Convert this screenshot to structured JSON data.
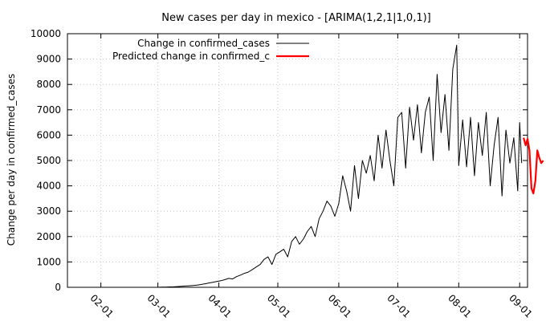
{
  "chart_data": {
    "type": "line",
    "title": "New cases per day in mexico -  [ARIMA(1,2,1|1,0,1)]",
    "xlabel": "",
    "ylabel": "Change per day in confirmed_cases",
    "xlim": [
      "2020-01-15",
      "2020-09-05"
    ],
    "ylim": [
      0,
      10000
    ],
    "x_ticks": [
      "02-01",
      "03-01",
      "04-01",
      "05-01",
      "06-01",
      "07-01",
      "08-01",
      "09-01"
    ],
    "x_tick_dates": [
      "2020-02-01",
      "2020-03-01",
      "2020-04-01",
      "2020-05-01",
      "2020-06-01",
      "2020-07-01",
      "2020-08-01",
      "2020-09-01"
    ],
    "y_ticks": [
      0,
      1000,
      2000,
      3000,
      4000,
      5000,
      6000,
      7000,
      8000,
      9000,
      10000
    ],
    "grid": true,
    "legend_position": "top-left",
    "series": [
      {
        "name": "Change in confirmed_cases",
        "color": "#000000",
        "x": [
          "2020-03-01",
          "2020-03-03",
          "2020-03-05",
          "2020-03-07",
          "2020-03-09",
          "2020-03-11",
          "2020-03-13",
          "2020-03-15",
          "2020-03-17",
          "2020-03-19",
          "2020-03-21",
          "2020-03-23",
          "2020-03-25",
          "2020-03-27",
          "2020-03-29",
          "2020-03-31",
          "2020-04-02",
          "2020-04-04",
          "2020-04-06",
          "2020-04-08",
          "2020-04-10",
          "2020-04-12",
          "2020-04-14",
          "2020-04-16",
          "2020-04-18",
          "2020-04-20",
          "2020-04-22",
          "2020-04-24",
          "2020-04-26",
          "2020-04-28",
          "2020-04-30",
          "2020-05-02",
          "2020-05-04",
          "2020-05-06",
          "2020-05-08",
          "2020-05-10",
          "2020-05-12",
          "2020-05-14",
          "2020-05-16",
          "2020-05-18",
          "2020-05-20",
          "2020-05-22",
          "2020-05-24",
          "2020-05-26",
          "2020-05-28",
          "2020-05-30",
          "2020-06-01",
          "2020-06-03",
          "2020-06-05",
          "2020-06-07",
          "2020-06-09",
          "2020-06-11",
          "2020-06-13",
          "2020-06-15",
          "2020-06-17",
          "2020-06-19",
          "2020-06-21",
          "2020-06-23",
          "2020-06-25",
          "2020-06-27",
          "2020-06-29",
          "2020-07-01",
          "2020-07-03",
          "2020-07-05",
          "2020-07-07",
          "2020-07-09",
          "2020-07-11",
          "2020-07-13",
          "2020-07-15",
          "2020-07-17",
          "2020-07-19",
          "2020-07-21",
          "2020-07-23",
          "2020-07-25",
          "2020-07-27",
          "2020-07-29",
          "2020-07-31",
          "2020-08-01",
          "2020-08-03",
          "2020-08-05",
          "2020-08-07",
          "2020-08-09",
          "2020-08-11",
          "2020-08-13",
          "2020-08-15",
          "2020-08-17",
          "2020-08-19",
          "2020-08-21",
          "2020-08-23",
          "2020-08-25",
          "2020-08-27",
          "2020-08-29",
          "2020-08-31",
          "2020-09-01",
          "2020-09-02"
        ],
        "values": [
          0,
          5,
          10,
          15,
          20,
          30,
          40,
          50,
          60,
          70,
          90,
          110,
          140,
          170,
          200,
          230,
          260,
          300,
          350,
          330,
          420,
          480,
          550,
          600,
          700,
          800,
          900,
          1100,
          1200,
          900,
          1300,
          1400,
          1500,
          1200,
          1800,
          2000,
          1700,
          1900,
          2200,
          2400,
          2000,
          2700,
          3000,
          3400,
          3200,
          2800,
          3300,
          4400,
          3800,
          3000,
          4800,
          3500,
          5000,
          4500,
          5200,
          4200,
          6000,
          4700,
          6200,
          5000,
          4000,
          6700,
          6900,
          4700,
          7100,
          5800,
          7200,
          5300,
          6900,
          7500,
          5000,
          8400,
          6100,
          7600,
          5400,
          8600,
          9550,
          4800,
          6600,
          4750,
          6700,
          4400,
          6500,
          5200,
          6900,
          4000,
          5600,
          6700,
          3600,
          6200,
          4900,
          5900,
          3800,
          6500,
          4900
        ]
      },
      {
        "name": "Predicted change in confirmed_c",
        "color": "#ff0000",
        "x": [
          "2020-09-03",
          "2020-09-04",
          "2020-09-05",
          "2020-09-06",
          "2020-09-07",
          "2020-09-08",
          "2020-09-09",
          "2020-09-10",
          "2020-09-11",
          "2020-09-12",
          "2020-09-13"
        ],
        "values": [
          5900,
          5600,
          5850,
          5400,
          3900,
          3700,
          4200,
          5400,
          5100,
          4900,
          5000
        ]
      }
    ]
  }
}
